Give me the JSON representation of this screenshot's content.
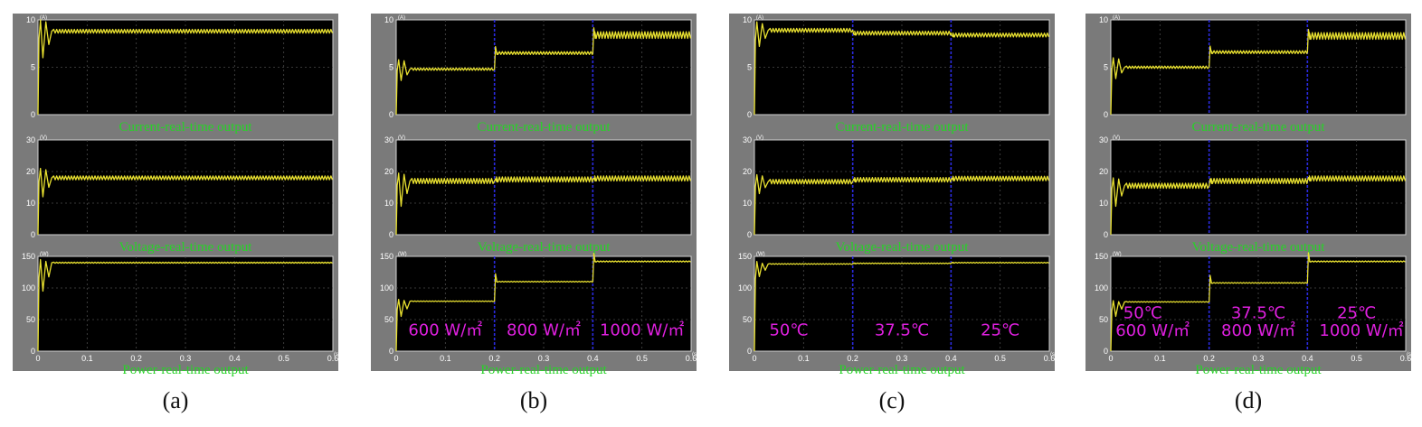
{
  "colors": {
    "panel_bg": "#7a7a7a",
    "plot_bg": "#000000",
    "trace": "#e8e030",
    "marker": "#2a2ae0",
    "title": "#27d327",
    "annotation": "#e020e0",
    "tick": "#ffffff",
    "grid": "#4a4a4a"
  },
  "chart_data": [
    {
      "type": "line",
      "caption": "(a)",
      "xlim": [
        0,
        0.6
      ],
      "x_ticks": [
        "0",
        "0.1",
        "0.2",
        "0.3",
        "0.4",
        "0.5",
        "0.6"
      ],
      "x_unit": "(s)",
      "markers_x": [],
      "subplots": [
        {
          "title": "Current-real-time output",
          "unit": "(A)",
          "ylim": [
            0,
            10
          ],
          "y_ticks": [
            "0",
            "5",
            "10"
          ],
          "segments": [
            {
              "x0": 0,
              "x1": 0.6,
              "y": 8.8,
              "osc": 0.2
            }
          ],
          "startup": {
            "peak": 10,
            "dip": 6.0
          }
        },
        {
          "title": "Voltage-real-time output",
          "unit": "(V)",
          "ylim": [
            0,
            30
          ],
          "y_ticks": [
            "0",
            "10",
            "20",
            "30"
          ],
          "segments": [
            {
              "x0": 0,
              "x1": 0.6,
              "y": 18.0,
              "osc": 0.6
            }
          ],
          "startup": {
            "peak": 21,
            "dip": 12
          }
        },
        {
          "title": "Power-real-time output",
          "unit": "(W)",
          "ylim": [
            0,
            150
          ],
          "y_ticks": [
            "0",
            "50",
            "100",
            "150"
          ],
          "segments": [
            {
              "x0": 0,
              "x1": 0.6,
              "y": 140,
              "osc": 0.8
            }
          ],
          "startup": {
            "peak": 145,
            "dip": 95
          },
          "annotations": []
        }
      ]
    },
    {
      "type": "line",
      "caption": "(b)",
      "xlim": [
        0,
        0.6
      ],
      "x_ticks": [
        "0",
        "0.1",
        "0.2",
        "0.3",
        "0.4",
        "0.5",
        "0.6"
      ],
      "x_unit": "(s)",
      "markers_x": [
        0.2,
        0.4
      ],
      "subplots": [
        {
          "title": "Current-real-time output",
          "unit": "(A)",
          "ylim": [
            0,
            10
          ],
          "y_ticks": [
            "0",
            "5",
            "10"
          ],
          "segments": [
            {
              "x0": 0,
              "x1": 0.2,
              "y": 4.8,
              "osc": 0.12
            },
            {
              "x0": 0.2,
              "x1": 0.4,
              "y": 6.5,
              "osc": 0.15
            },
            {
              "x0": 0.4,
              "x1": 0.6,
              "y": 8.4,
              "osc": 0.35
            }
          ],
          "startup": {
            "peak": 5.8,
            "dip": 3.6
          }
        },
        {
          "title": "Voltage-real-time output",
          "unit": "(V)",
          "ylim": [
            0,
            30
          ],
          "y_ticks": [
            "0",
            "10",
            "20",
            "30"
          ],
          "segments": [
            {
              "x0": 0,
              "x1": 0.2,
              "y": 17.0,
              "osc": 0.8
            },
            {
              "x0": 0.2,
              "x1": 0.4,
              "y": 17.5,
              "osc": 0.8
            },
            {
              "x0": 0.4,
              "x1": 0.6,
              "y": 17.8,
              "osc": 0.8
            }
          ],
          "startup": {
            "peak": 19.5,
            "dip": 9
          }
        },
        {
          "title": "Power-real-time output",
          "unit": "(W)",
          "ylim": [
            0,
            150
          ],
          "y_ticks": [
            "0",
            "50",
            "100",
            "150"
          ],
          "segments": [
            {
              "x0": 0,
              "x1": 0.2,
              "y": 79,
              "osc": 0.5
            },
            {
              "x0": 0.2,
              "x1": 0.4,
              "y": 110,
              "osc": 0.6
            },
            {
              "x0": 0.4,
              "x1": 0.6,
              "y": 142,
              "osc": 0.8
            }
          ],
          "startup": {
            "peak": 82,
            "dip": 55
          },
          "annotations": [
            {
              "text": "600 W/㎡",
              "x": 0.1,
              "y": 25
            },
            {
              "text": "800 W/㎡",
              "x": 0.3,
              "y": 25
            },
            {
              "text": "1000 W/㎡",
              "x": 0.5,
              "y": 25
            }
          ]
        }
      ]
    },
    {
      "type": "line",
      "caption": "(c)",
      "xlim": [
        0,
        0.6
      ],
      "x_ticks": [
        "0",
        "0.1",
        "0.2",
        "0.3",
        "0.4",
        "0.5",
        "0.6"
      ],
      "x_unit": "(s)",
      "markers_x": [
        0.2,
        0.4
      ],
      "subplots": [
        {
          "title": "Current-real-time output",
          "unit": "(A)",
          "ylim": [
            0,
            10
          ],
          "y_ticks": [
            "0",
            "5",
            "10"
          ],
          "segments": [
            {
              "x0": 0,
              "x1": 0.2,
              "y": 8.9,
              "osc": 0.2
            },
            {
              "x0": 0.2,
              "x1": 0.4,
              "y": 8.6,
              "osc": 0.2
            },
            {
              "x0": 0.4,
              "x1": 0.6,
              "y": 8.4,
              "osc": 0.2
            }
          ],
          "startup": {
            "peak": 9.8,
            "dip": 7.2
          }
        },
        {
          "title": "Voltage-real-time output",
          "unit": "(V)",
          "ylim": [
            0,
            30
          ],
          "y_ticks": [
            "0",
            "10",
            "20",
            "30"
          ],
          "segments": [
            {
              "x0": 0,
              "x1": 0.2,
              "y": 16.8,
              "osc": 0.7
            },
            {
              "x0": 0.2,
              "x1": 0.4,
              "y": 17.4,
              "osc": 0.7
            },
            {
              "x0": 0.4,
              "x1": 0.6,
              "y": 17.8,
              "osc": 0.7
            }
          ],
          "startup": {
            "peak": 19,
            "dip": 13
          }
        },
        {
          "title": "Power-real-time output",
          "unit": "(W)",
          "ylim": [
            0,
            150
          ],
          "y_ticks": [
            "0",
            "50",
            "100",
            "150"
          ],
          "segments": [
            {
              "x0": 0,
              "x1": 0.2,
              "y": 138,
              "osc": 0.6
            },
            {
              "x0": 0.2,
              "x1": 0.4,
              "y": 139,
              "osc": 0.6
            },
            {
              "x0": 0.4,
              "x1": 0.6,
              "y": 140,
              "osc": 0.6
            }
          ],
          "startup": {
            "peak": 142,
            "dip": 118
          },
          "annotations": [
            {
              "text": "50℃",
              "x": 0.07,
              "y": 25
            },
            {
              "text": "37.5℃",
              "x": 0.3,
              "y": 25
            },
            {
              "text": "25℃",
              "x": 0.5,
              "y": 25
            }
          ]
        }
      ]
    },
    {
      "type": "line",
      "caption": "(d)",
      "xlim": [
        0,
        0.6
      ],
      "x_ticks": [
        "0",
        "0.1",
        "0.2",
        "0.3",
        "0.4",
        "0.5",
        "0.6"
      ],
      "x_unit": "(s)",
      "markers_x": [
        0.2,
        0.4
      ],
      "subplots": [
        {
          "title": "Current-real-time output",
          "unit": "(A)",
          "ylim": [
            0,
            10
          ],
          "y_ticks": [
            "0",
            "5",
            "10"
          ],
          "segments": [
            {
              "x0": 0,
              "x1": 0.2,
              "y": 5.0,
              "osc": 0.12
            },
            {
              "x0": 0.2,
              "x1": 0.4,
              "y": 6.6,
              "osc": 0.15
            },
            {
              "x0": 0.4,
              "x1": 0.6,
              "y": 8.3,
              "osc": 0.35
            }
          ],
          "startup": {
            "peak": 6.0,
            "dip": 3.8
          }
        },
        {
          "title": "Voltage-real-time output",
          "unit": "(V)",
          "ylim": [
            0,
            30
          ],
          "y_ticks": [
            "0",
            "10",
            "20",
            "30"
          ],
          "segments": [
            {
              "x0": 0,
              "x1": 0.2,
              "y": 15.5,
              "osc": 0.8
            },
            {
              "x0": 0.2,
              "x1": 0.4,
              "y": 17.0,
              "osc": 0.8
            },
            {
              "x0": 0.4,
              "x1": 0.6,
              "y": 17.8,
              "osc": 0.8
            }
          ],
          "startup": {
            "peak": 18,
            "dip": 9
          }
        },
        {
          "title": "Power-real-time output",
          "unit": "(W)",
          "ylim": [
            0,
            150
          ],
          "y_ticks": [
            "0",
            "50",
            "100",
            "150"
          ],
          "segments": [
            {
              "x0": 0,
              "x1": 0.2,
              "y": 78,
              "osc": 0.5
            },
            {
              "x0": 0.2,
              "x1": 0.4,
              "y": 108,
              "osc": 0.6
            },
            {
              "x0": 0.4,
              "x1": 0.6,
              "y": 142,
              "osc": 0.8
            }
          ],
          "startup": {
            "peak": 80,
            "dip": 55
          },
          "annotations": [
            {
              "text": "50℃",
              "x": 0.065,
              "y": 52
            },
            {
              "text": "37.5℃",
              "x": 0.3,
              "y": 52
            },
            {
              "text": "25℃",
              "x": 0.5,
              "y": 52
            },
            {
              "text": "600 W/㎡",
              "x": 0.085,
              "y": 24
            },
            {
              "text": "800 W/㎡",
              "x": 0.3,
              "y": 24
            },
            {
              "text": "1000 W/㎡",
              "x": 0.51,
              "y": 24
            }
          ]
        }
      ]
    }
  ]
}
